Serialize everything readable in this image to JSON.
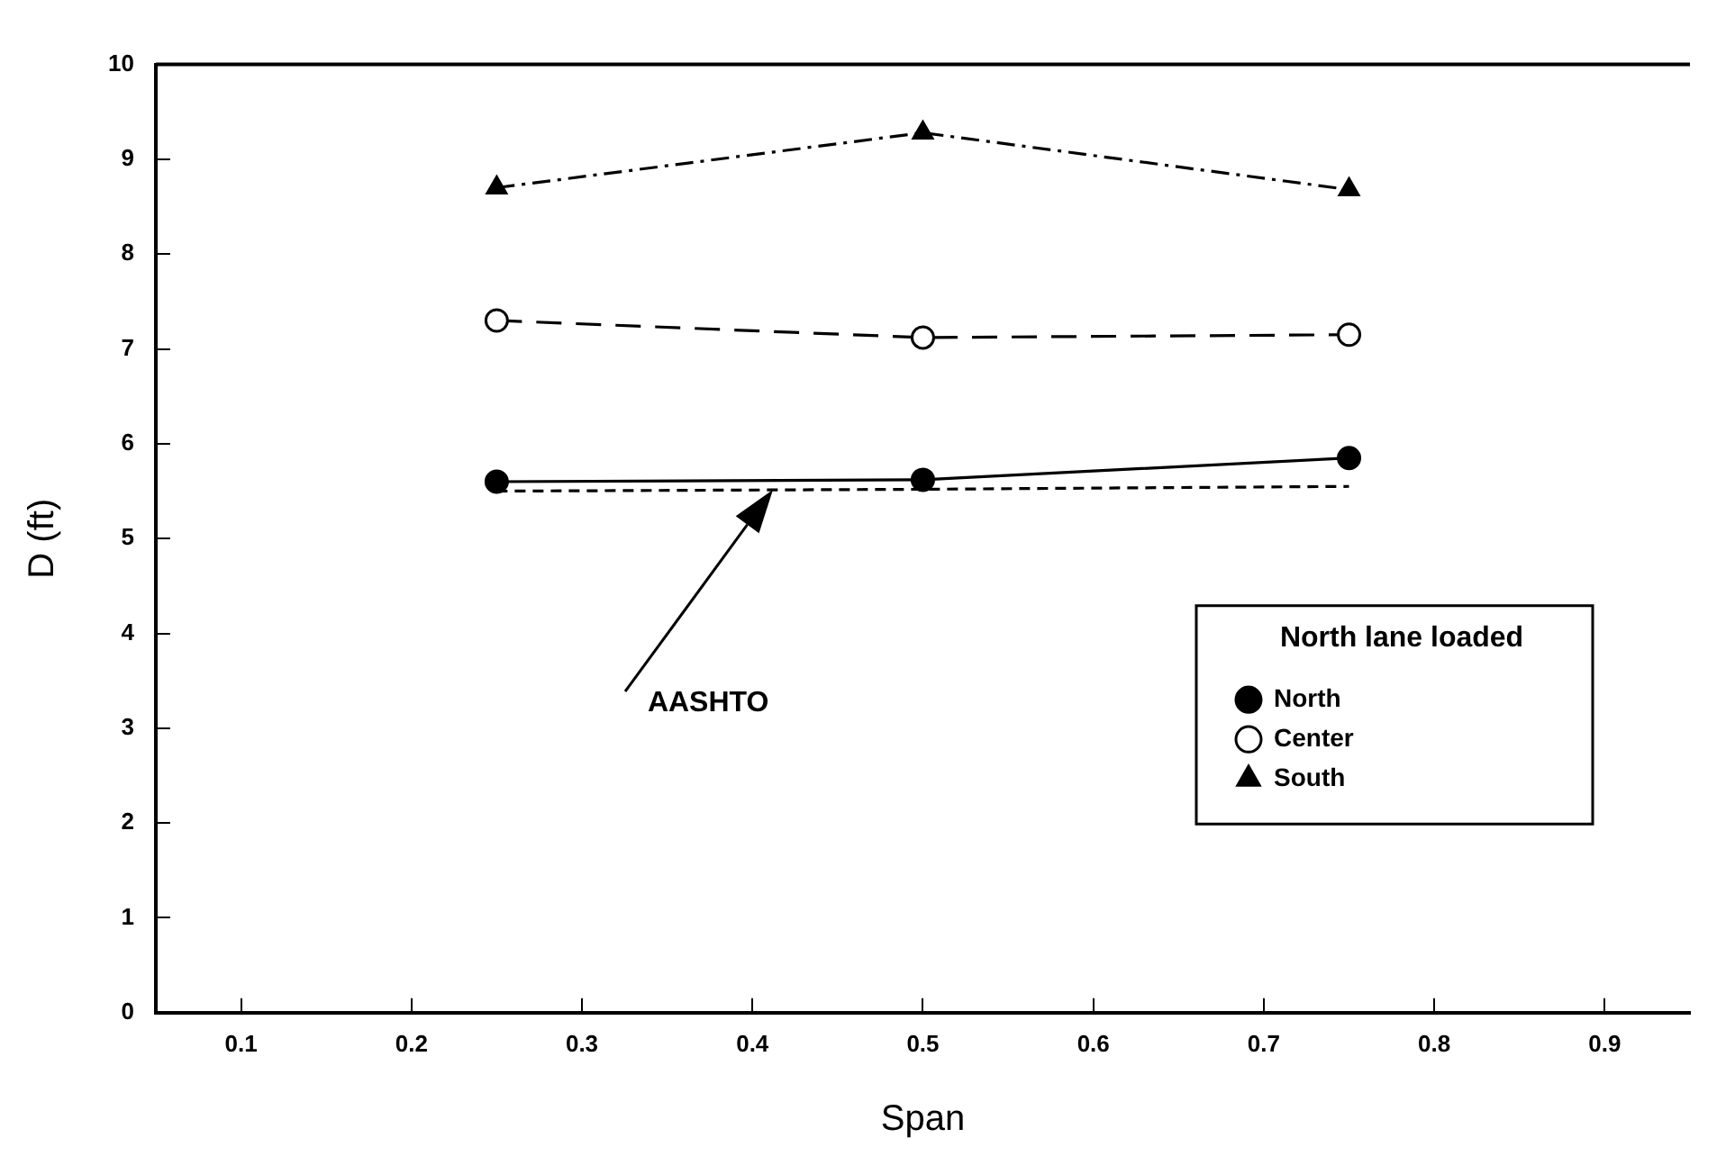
{
  "chart_data": {
    "type": "line",
    "xlabel": "Span",
    "ylabel": "D (ft)",
    "legend_title": "North lane loaded",
    "legend": "bottom right",
    "grid": false,
    "xlim": [
      0.05,
      0.95
    ],
    "xticks": [
      0.1,
      0.2,
      0.3,
      0.4,
      0.5,
      0.6,
      0.7,
      0.8,
      0.9
    ],
    "ylim": [
      0,
      10
    ],
    "yticks": [
      0,
      1,
      2,
      3,
      4,
      5,
      6,
      7,
      8,
      9,
      10
    ],
    "x": [
      0.25,
      0.5,
      0.75
    ],
    "series": [
      {
        "name": "North",
        "color": "#000000",
        "values": [
          5.6,
          5.62,
          5.85
        ],
        "marker": "circle",
        "line_style": "solid"
      },
      {
        "name": "Center",
        "color": "#000000",
        "values": [
          7.3,
          7.12,
          7.15
        ],
        "marker": "circle",
        "line_style": "dashed"
      },
      {
        "name": "South",
        "color": "#000000",
        "values": [
          8.7,
          9.28,
          8.68
        ],
        "marker": "triangle",
        "line_style": "dotted"
      },
      {
        "color": "#000000",
        "values": [
          5.5,
          5.52,
          5.55
        ],
        "marker": "none",
        "line_style": "dashed"
      }
    ],
    "annotations": [
      "AASHTO"
    ]
  }
}
